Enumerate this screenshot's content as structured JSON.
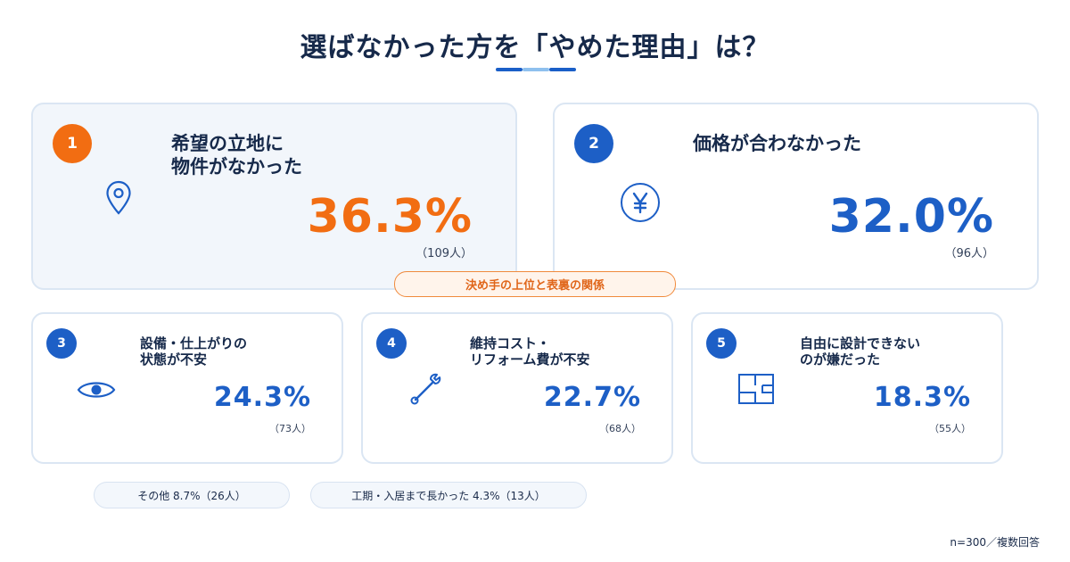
{
  "title": "選ばなかった方を「やめた理由」は？",
  "chart_data": {
    "type": "table",
    "unit": "%",
    "items": [
      {
        "rank": "1",
        "label_lines": [
          "希望の立地に",
          "物件がなかった"
        ],
        "percent": 36.3,
        "value_text": "36.3%",
        "count_text": "（109人）",
        "icon": "map-pin-icon"
      },
      {
        "rank": "2",
        "label_lines": [
          "価格が合わなかった"
        ],
        "percent": 32.0,
        "value_text": "32.0%",
        "count_text": "（96人）",
        "icon": "yen-icon"
      },
      {
        "rank": "3",
        "label_lines": [
          "設備・仕上がりの",
          "状態が不安"
        ],
        "percent": 24.3,
        "value_text": "24.3%",
        "count_text": "（73人）",
        "icon": "eye-icon"
      },
      {
        "rank": "4",
        "label_lines": [
          "維持コスト・",
          "リフォーム費が不安"
        ],
        "percent": 22.7,
        "value_text": "22.7%",
        "count_text": "（68人）",
        "icon": "wrench-icon"
      },
      {
        "rank": "5",
        "label_lines": [
          "自由に設計できない",
          "のが嫌だった"
        ],
        "percent": 18.3,
        "value_text": "18.3%",
        "count_text": "（55人）",
        "icon": "floorplan-icon"
      }
    ],
    "others": [
      {
        "text": "その他 8.7%（26人）",
        "percent": 8.7
      },
      {
        "text": "工期・入居まで長かった 4.3%（13人）",
        "percent": 4.3
      }
    ]
  },
  "chip": "決め手の上位と表裏の関係",
  "footnote": "n=300／複数回答",
  "colors": {
    "accent_orange": "#f26d12",
    "accent_blue": "#1d5fc6",
    "navy": "#16294a"
  }
}
